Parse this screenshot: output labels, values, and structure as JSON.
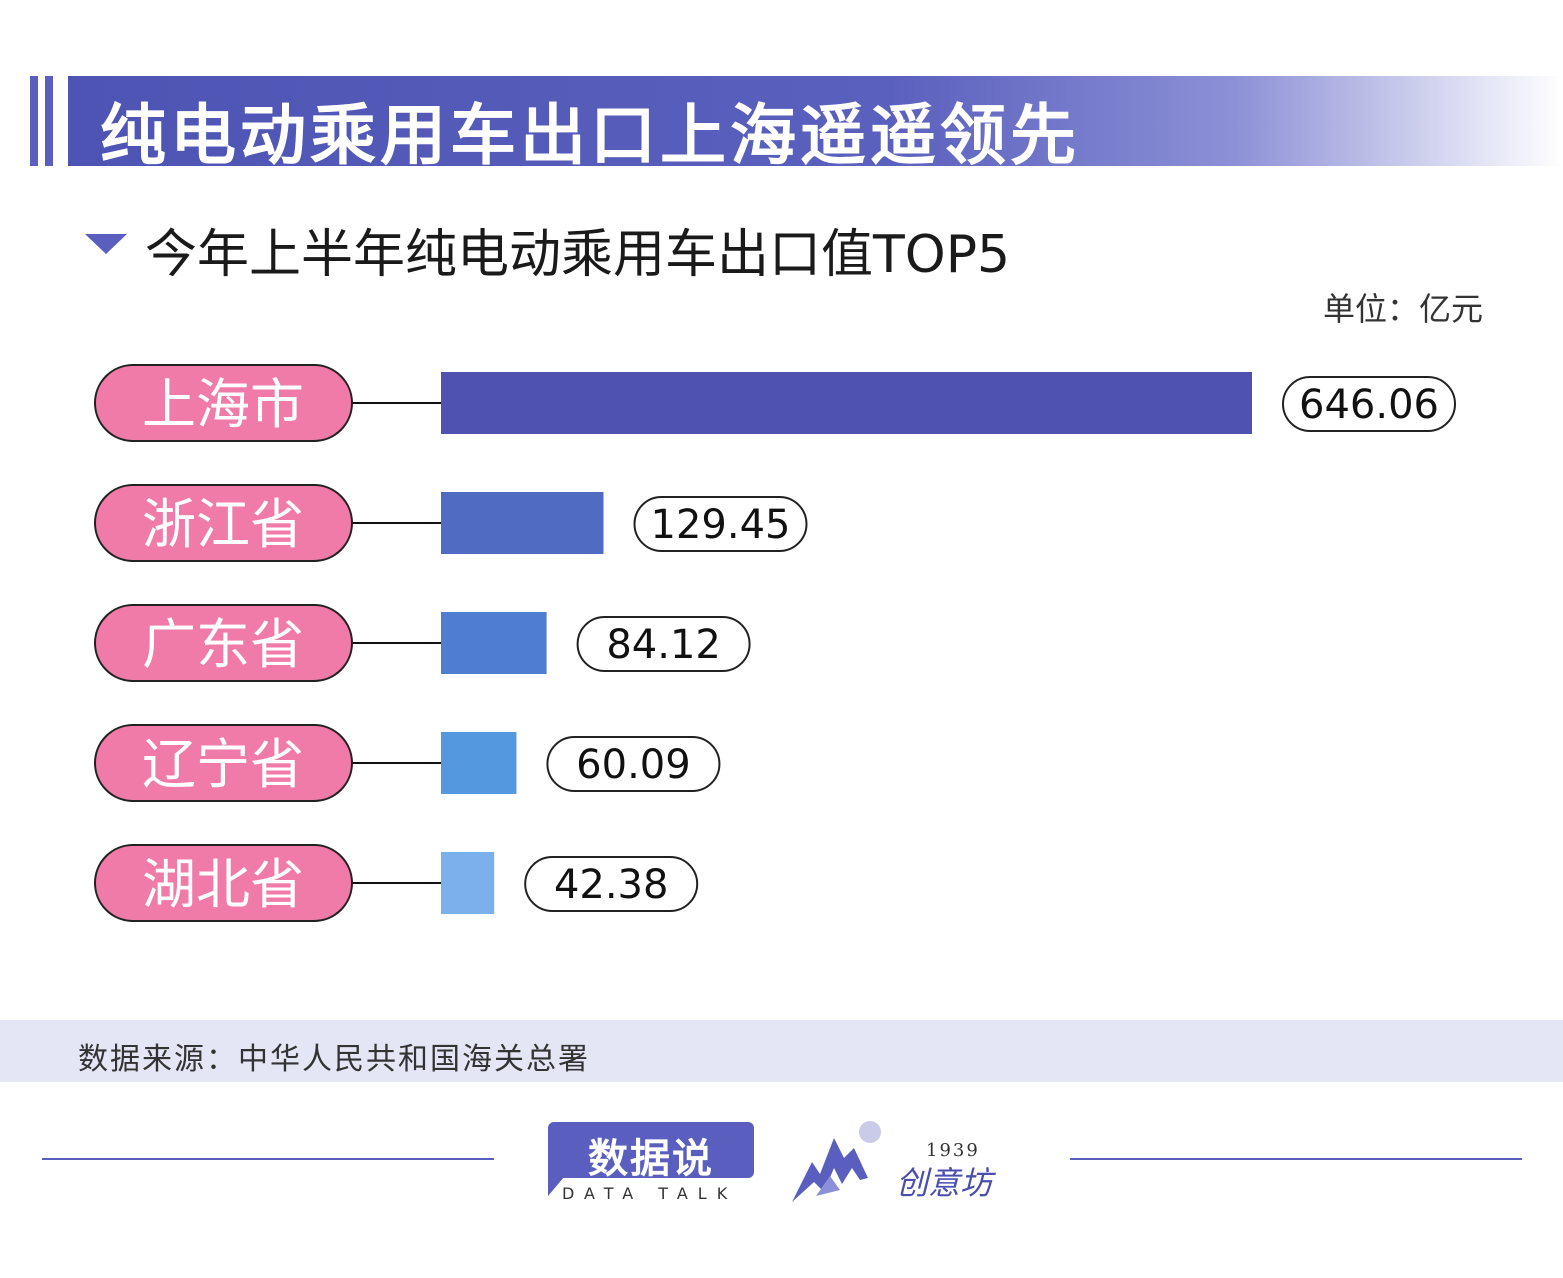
{
  "title": "纯电动乘用车出口上海遥遥领先",
  "subtitle": "今年上半年纯电动乘用车出口值TOP5",
  "unit": "单位：亿元",
  "source": "数据来源：中华人民共和国海关总署",
  "footer": {
    "logo1_main": "数据说",
    "logo1_sub": "DATA TALK",
    "logo2_year": "1939",
    "logo2_name": "创意坊"
  },
  "colors": {
    "accent": "#5a5fbf",
    "pill": "#f07aa8",
    "bars": [
      "#4f52b0",
      "#4f6cc2",
      "#4f7ed0",
      "#5499e0",
      "#7ab1ec"
    ]
  },
  "chart_data": {
    "type": "bar",
    "orientation": "horizontal",
    "categories": [
      "上海市",
      "浙江省",
      "广东省",
      "辽宁省",
      "湖北省"
    ],
    "values": [
      646.06,
      129.45,
      84.12,
      60.09,
      42.38
    ],
    "value_labels": [
      "646.06",
      "129.45",
      "84.12",
      "60.09",
      "42.38"
    ],
    "xlim": [
      0,
      646.06
    ],
    "grid": false,
    "legend": "none"
  }
}
